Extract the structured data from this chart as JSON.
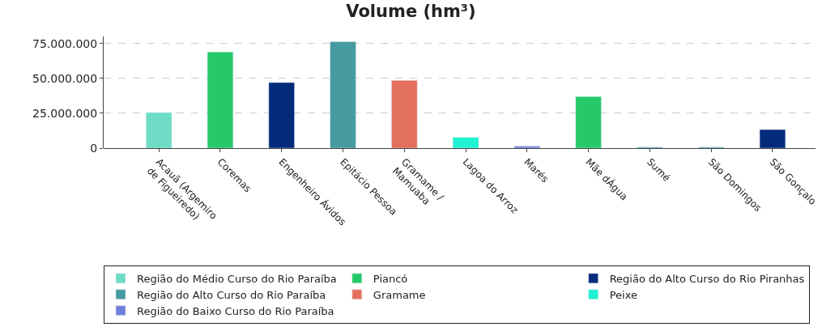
{
  "chart_data": {
    "type": "bar",
    "title": "Volume (hm³)",
    "categories": [
      "Acauã (Argemiro\nde Figueiredo)",
      "Coremas",
      "Engenheiro Ávidos",
      "Epitácio Pessoa",
      "Gramame /\nMamuaba",
      "Lagoa do Arroz",
      "Marés",
      "Mãe dÁgua",
      "Sumé",
      "São Domingos",
      "São Gonçalo"
    ],
    "series": [
      {
        "name": "Região do Médio Curso do Rio Paraíba",
        "color": "#6edcc4",
        "values": [
          25500000,
          null,
          null,
          null,
          null,
          null,
          null,
          null,
          null,
          null,
          null
        ]
      },
      {
        "name": "Piancó",
        "color": "#26c96a",
        "values": [
          null,
          68900000,
          null,
          null,
          null,
          null,
          null,
          36900000,
          null,
          null,
          null
        ]
      },
      {
        "name": "Região do Alto Curso do Rio Piranhas",
        "color": "#032b7a",
        "values": [
          null,
          null,
          47000000,
          null,
          null,
          null,
          null,
          null,
          null,
          null,
          13300000
        ]
      },
      {
        "name": "Região do Alto Curso do Rio Paraíba",
        "color": "#459ba0",
        "values": [
          null,
          null,
          null,
          76200000,
          null,
          null,
          null,
          null,
          700000,
          700000,
          null
        ]
      },
      {
        "name": "Gramame",
        "color": "#e36f5d",
        "values": [
          null,
          null,
          null,
          null,
          48500000,
          null,
          null,
          null,
          null,
          null,
          null
        ]
      },
      {
        "name": "Peixe",
        "color": "#20f2d4",
        "values": [
          null,
          null,
          null,
          null,
          null,
          7700000,
          null,
          null,
          null,
          null,
          null
        ]
      },
      {
        "name": "Região do Baixo Curso do Rio Paraíba",
        "color": "#717fdc",
        "values": [
          null,
          null,
          null,
          null,
          null,
          null,
          1400000,
          null,
          null,
          null,
          null
        ]
      }
    ],
    "ylim": [
      0,
      80000000
    ],
    "yticks": [
      {
        "value": 0,
        "label": "0"
      },
      {
        "value": 25000000,
        "label": "25.000.000"
      },
      {
        "value": 50000000,
        "label": "50.000.000"
      },
      {
        "value": 75000000,
        "label": "75.000.000"
      }
    ],
    "grid": "y",
    "legend": "bottom"
  }
}
